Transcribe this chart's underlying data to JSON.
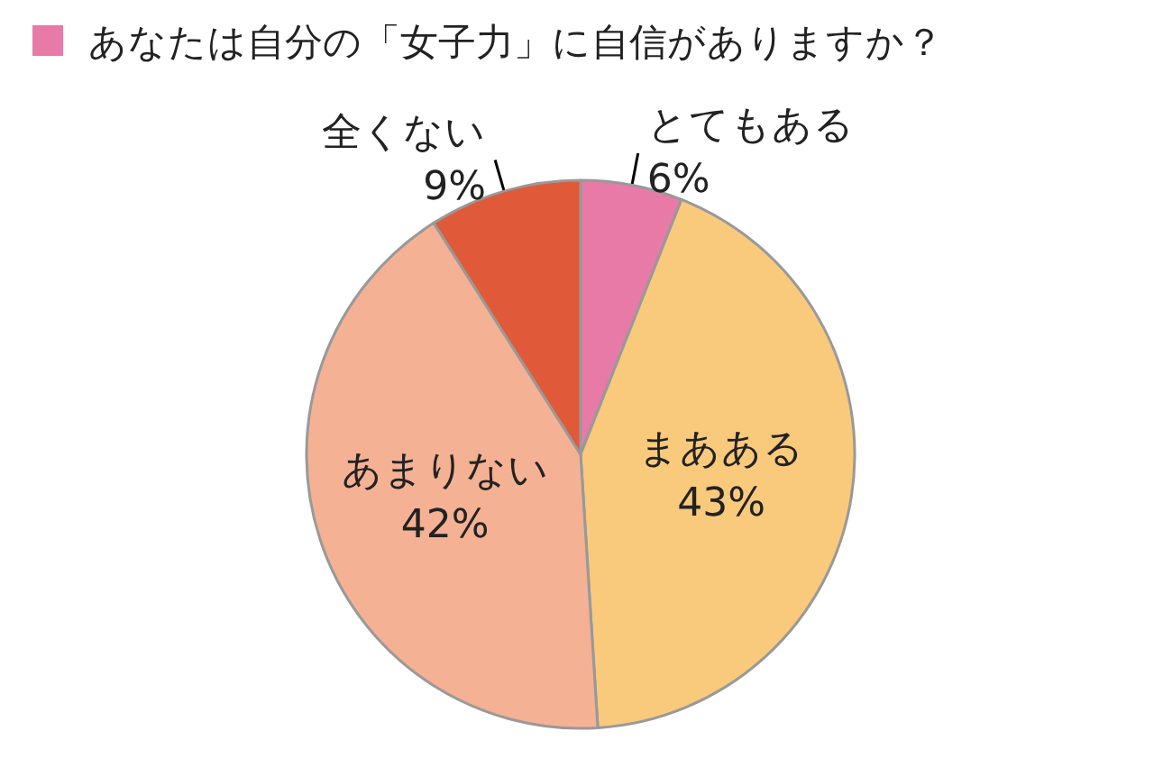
{
  "chart_data": {
    "type": "pie",
    "title": "あなたは自分の「女子力」に自信がありますか？",
    "categories": [
      "とてもある",
      "まあある",
      "あまりない",
      "全くない"
    ],
    "values": [
      6,
      43,
      42,
      9
    ],
    "value_labels": [
      "6%",
      "43%",
      "42%",
      "9%"
    ],
    "colors": [
      "#e87aa8",
      "#f9c97c",
      "#f4b193",
      "#e05a3a"
    ],
    "legend": false
  }
}
